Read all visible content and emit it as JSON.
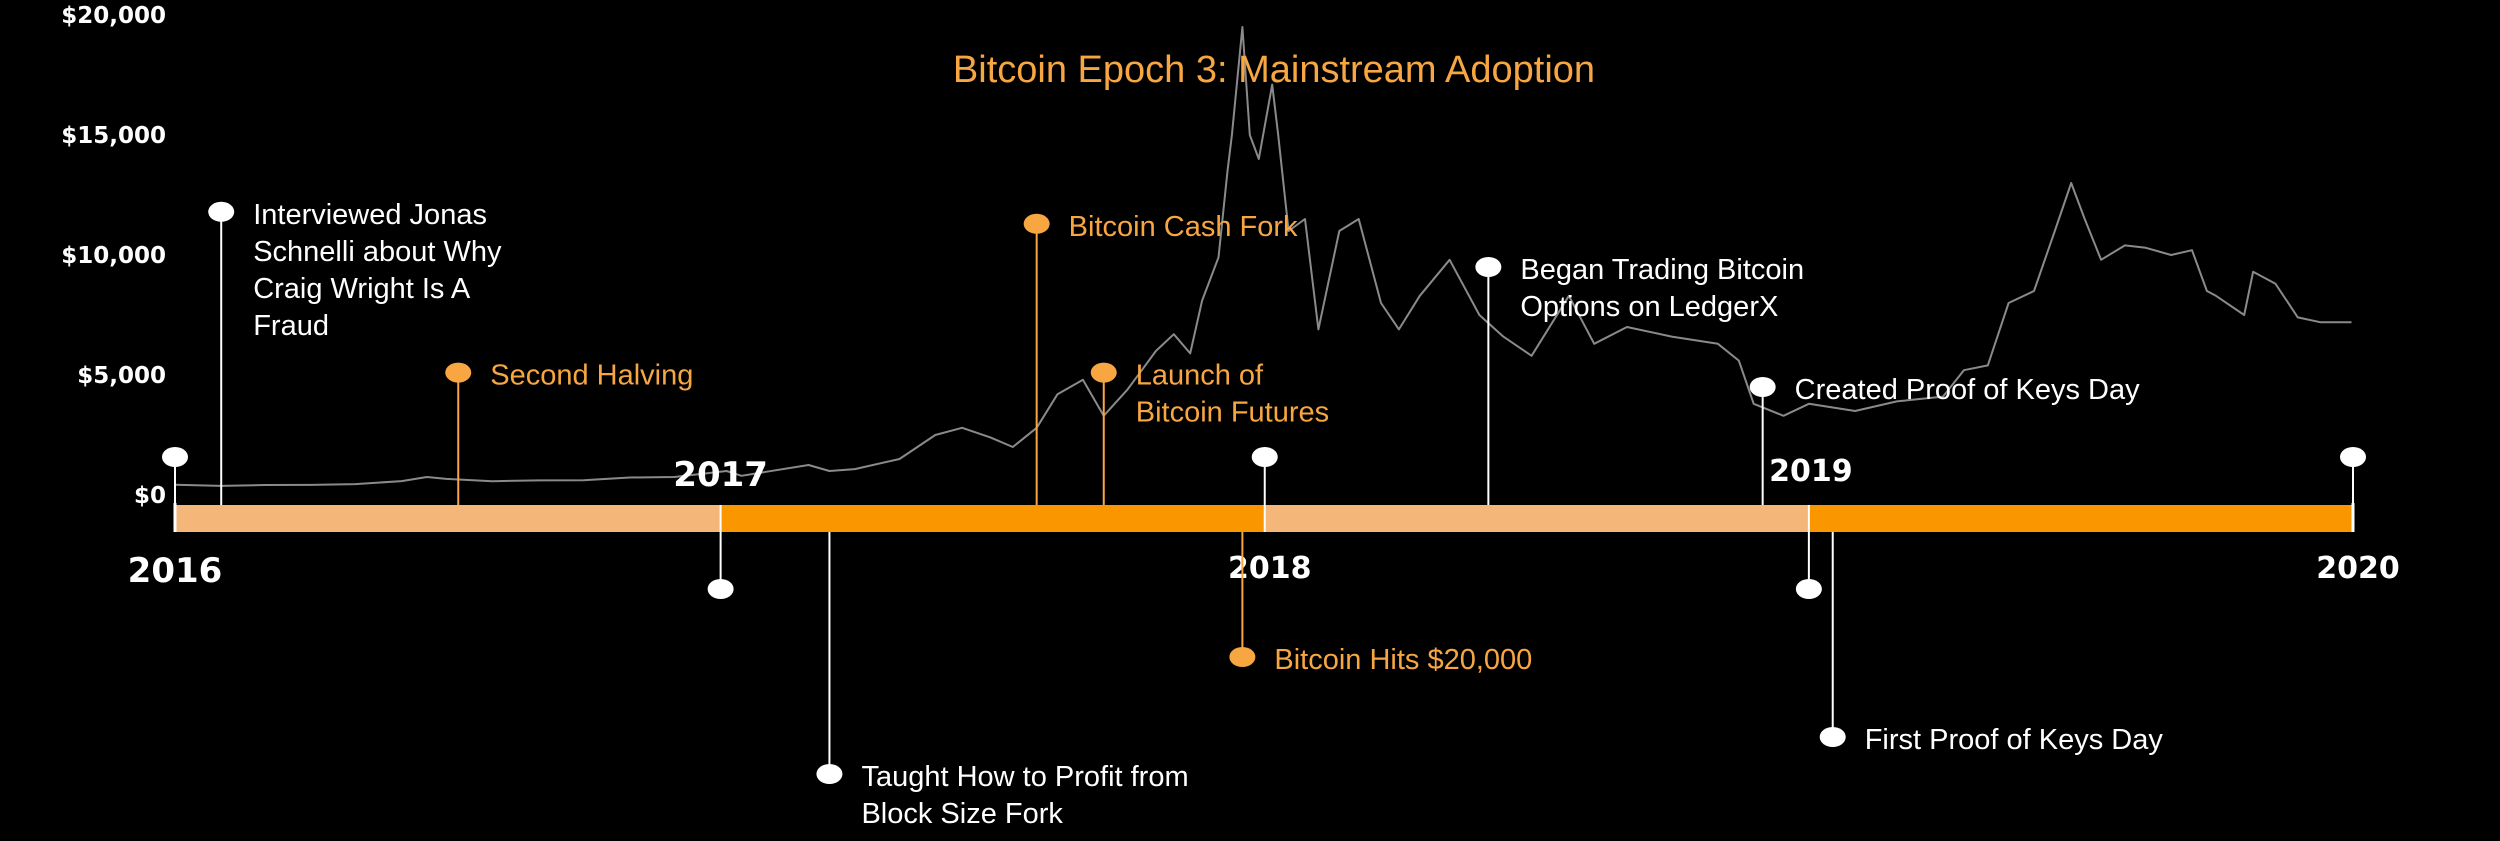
{
  "colors": {
    "background": "#000000",
    "accent": "#F7A642",
    "bar_light": "#F5B679",
    "bar_dark": "#FA9600",
    "price_line": "#8a8a8a",
    "event_text": "#ffffff",
    "axis_text": "#ffffff"
  },
  "chart_data": {
    "type": "line",
    "title": "Bitcoin Epoch 3: Mainstream Adoption",
    "xlabel": "",
    "ylabel": "",
    "x_range": [
      "2016-01-01",
      "2020-01-01"
    ],
    "ylim": [
      0,
      20000
    ],
    "y_ticks": [
      {
        "value": 0,
        "label": "$0"
      },
      {
        "value": 5000,
        "label": "$5,000"
      },
      {
        "value": 10000,
        "label": "$10,000"
      },
      {
        "value": 15000,
        "label": "$15,000"
      },
      {
        "value": 20000,
        "label": "$20,000"
      }
    ],
    "year_labels": [
      "2016",
      "2017",
      "2018",
      "2019",
      "2020"
    ],
    "grid": false,
    "series": [
      {
        "x": [
          "2016-01-01",
          "2016-02-01",
          "2016-03-01",
          "2016-04-01",
          "2016-05-01",
          "2016-06-01",
          "2016-06-18",
          "2016-07-01",
          "2016-08-01",
          "2016-09-01",
          "2016-10-01",
          "2016-11-01",
          "2016-12-01",
          "2017-01-05",
          "2017-01-15",
          "2017-02-01",
          "2017-03-01",
          "2017-03-15",
          "2017-04-01",
          "2017-05-01",
          "2017-05-25",
          "2017-06-12",
          "2017-07-01",
          "2017-07-16",
          "2017-08-01",
          "2017-08-15",
          "2017-09-01",
          "2017-09-15",
          "2017-10-01",
          "2017-10-20",
          "2017-11-01",
          "2017-11-12",
          "2017-11-20",
          "2017-12-01",
          "2017-12-07",
          "2017-12-10",
          "2017-12-17",
          "2017-12-22",
          "2017-12-28",
          "2018-01-06",
          "2018-01-10",
          "2018-01-17",
          "2018-01-28",
          "2018-02-06",
          "2018-02-20",
          "2018-03-05",
          "2018-03-20",
          "2018-04-01",
          "2018-04-15",
          "2018-05-05",
          "2018-05-25",
          "2018-06-10",
          "2018-06-29",
          "2018-07-24",
          "2018-08-10",
          "2018-09-01",
          "2018-10-01",
          "2018-11-01",
          "2018-11-15",
          "2018-11-25",
          "2018-12-15",
          "2019-01-01",
          "2019-02-01",
          "2019-03-01",
          "2019-04-01",
          "2019-04-15",
          "2019-05-01",
          "2019-05-15",
          "2019-06-01",
          "2019-06-15",
          "2019-06-26",
          "2019-07-05",
          "2019-07-16",
          "2019-08-01",
          "2019-08-15",
          "2019-09-01",
          "2019-09-15",
          "2019-09-25",
          "2019-10-01",
          "2019-10-20",
          "2019-10-26",
          "2019-11-10",
          "2019-11-25",
          "2019-12-10",
          "2019-12-31"
        ],
        "values": [
          430,
          380,
          415,
          420,
          455,
          580,
          750,
          670,
          575,
          610,
          615,
          730,
          750,
          1000,
          800,
          970,
          1250,
          1000,
          1080,
          1500,
          2500,
          2800,
          2400,
          2000,
          2800,
          4200,
          4800,
          3300,
          4400,
          6000,
          6700,
          5900,
          8100,
          9900,
          13500,
          15000,
          19500,
          15000,
          14000,
          17100,
          15000,
          11000,
          11500,
          6900,
          11000,
          11500,
          8000,
          6900,
          8300,
          9800,
          7500,
          6600,
          5800,
          8300,
          6300,
          7000,
          6600,
          6300,
          5600,
          3800,
          3300,
          3800,
          3500,
          3900,
          4100,
          5200,
          5400,
          8000,
          8500,
          11000,
          13000,
          11500,
          9800,
          10400,
          10300,
          10000,
          10200,
          8500,
          8300,
          7500,
          9300,
          8800,
          7400,
          7200,
          7200
        ]
      }
    ],
    "events": [
      {
        "date": "2016-01-01",
        "side": "up",
        "level": 1,
        "label": "",
        "color": "white"
      },
      {
        "date": "2016-02-01",
        "side": "up",
        "level": 11800,
        "label": "Interviewed Jonas\nSchnelli about Why\nCraig Wright Is A\nFraud",
        "color": "white"
      },
      {
        "date": "2016-07-09",
        "side": "up",
        "level": 5100,
        "label": "Second Halving",
        "color": "accent"
      },
      {
        "date": "2017-01-01",
        "side": "down",
        "level": 57,
        "label": "",
        "color": "white"
      },
      {
        "date": "2017-03-15",
        "side": "down",
        "level": 242,
        "label": "Taught How to Profit from\nBlock Size Fork",
        "color": "white"
      },
      {
        "date": "2017-08-01",
        "side": "up",
        "level": 11300,
        "label": "Bitcoin Cash Fork",
        "color": "accent"
      },
      {
        "date": "2017-09-15",
        "side": "up",
        "level": 5100,
        "label": "Launch of\nBitcoin Futures",
        "color": "accent"
      },
      {
        "date": "2017-12-17",
        "side": "down",
        "level": 125,
        "label": "Bitcoin Hits $20,000",
        "color": "accent"
      },
      {
        "date": "2018-01-01",
        "side": "up",
        "level": 1,
        "label": "",
        "color": "white"
      },
      {
        "date": "2018-05-31",
        "side": "up",
        "level": 9500,
        "label": "Began Trading Bitcoin\nOptions on LedgerX",
        "color": "white"
      },
      {
        "date": "2018-12-01",
        "side": "up",
        "level": 4500,
        "label": "Created Proof of Keys Day",
        "color": "white"
      },
      {
        "date": "2019-01-01",
        "side": "down",
        "level": 57,
        "label": "",
        "color": "white"
      },
      {
        "date": "2019-01-17",
        "side": "down",
        "level": 205,
        "label": "First Proof of Keys Day",
        "color": "white"
      },
      {
        "date": "2020-01-01",
        "side": "up",
        "level": 1,
        "label": "",
        "color": "white"
      }
    ]
  }
}
